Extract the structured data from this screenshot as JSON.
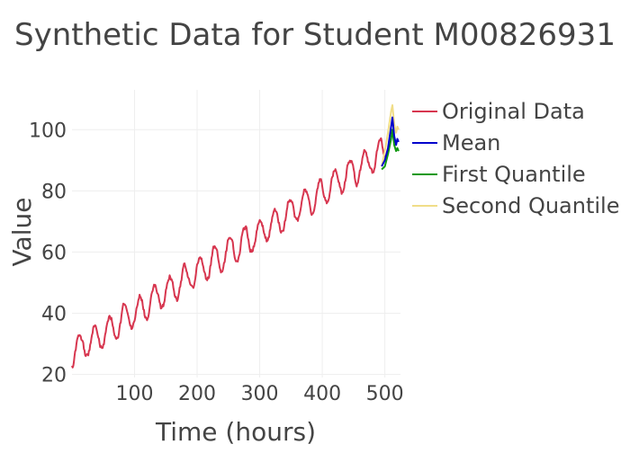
{
  "chart_data": {
    "type": "line",
    "title": "Synthetic Data for Student M00826931",
    "xlabel": "Time (hours)",
    "ylabel": "Value",
    "xlim": [
      0,
      525
    ],
    "ylim": [
      19,
      113
    ],
    "xticks": [
      100,
      200,
      300,
      400,
      500
    ],
    "yticks": [
      20,
      40,
      60,
      80,
      100
    ],
    "grid": true,
    "legend_position": "top-right",
    "original_trend": {
      "x_start": 0,
      "x_end": 500,
      "value_start": 27,
      "value_end": 93,
      "daily_amplitude": 4.5,
      "period_hours": 24
    },
    "series": [
      {
        "name": "Original Data",
        "color": "#d7364f",
        "sample_x": [
          0,
          8,
          24,
          48,
          72,
          96,
          120,
          144,
          168,
          192,
          216,
          240,
          264,
          288,
          312,
          336,
          360,
          384,
          408,
          432,
          456,
          480,
          500
        ],
        "sample_y": [
          27,
          32,
          30,
          33,
          35,
          38,
          41,
          43,
          47,
          49,
          52,
          55,
          58,
          61,
          63,
          67,
          70,
          73,
          75,
          79,
          82,
          88,
          87
        ]
      },
      {
        "name": "Mean",
        "color": "#0000cc",
        "x": [
          495,
          500,
          505,
          510,
          512,
          515,
          518,
          520,
          522
        ],
        "y": [
          88,
          90,
          94,
          101,
          104,
          98,
          95,
          97,
          96
        ]
      },
      {
        "name": "First Quantile",
        "color": "#119911",
        "x": [
          495,
          500,
          505,
          510,
          512,
          515,
          518,
          520,
          522
        ],
        "y": [
          87,
          88,
          92,
          97,
          100,
          95,
          93,
          94,
          93
        ]
      },
      {
        "name": "Second Quantile",
        "color": "#f0dd88",
        "x": [
          495,
          500,
          505,
          510,
          512,
          515,
          518,
          520,
          522
        ],
        "y": [
          88,
          93,
          99,
          106,
          108,
          102,
          99,
          101,
          100
        ]
      }
    ]
  }
}
